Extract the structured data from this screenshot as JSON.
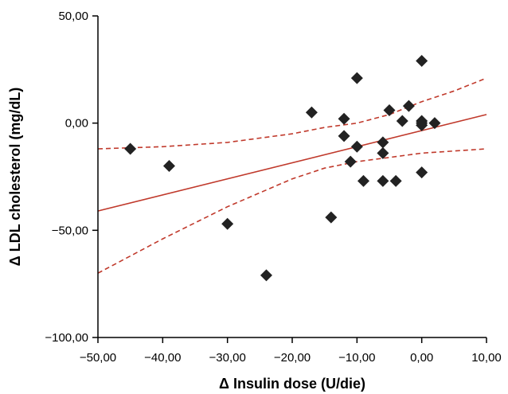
{
  "chart_data": {
    "type": "scatter",
    "xlabel": "Δ Insulin dose (U/die)",
    "ylabel": "Δ LDL cholesterol (mg/dL)",
    "xlim": [
      -50,
      10
    ],
    "ylim": [
      -100,
      50
    ],
    "x_ticks": [
      -50,
      -40,
      -30,
      -20,
      -10,
      0,
      10
    ],
    "y_ticks": [
      -100,
      -50,
      0,
      50
    ],
    "x_tick_labels": [
      "−50,00",
      "−40,00",
      "−30,00",
      "−20,00",
      "−10,00",
      "0,00",
      "10,00"
    ],
    "y_tick_labels": [
      "−100,00",
      "−50,00",
      "0,00",
      "50,00"
    ],
    "grid": false,
    "points": [
      {
        "x": -45,
        "y": -12
      },
      {
        "x": -39,
        "y": -20
      },
      {
        "x": -30,
        "y": -47
      },
      {
        "x": -24,
        "y": -71
      },
      {
        "x": -17,
        "y": 5
      },
      {
        "x": -14,
        "y": -44
      },
      {
        "x": -12,
        "y": 2
      },
      {
        "x": -12,
        "y": -6
      },
      {
        "x": -11,
        "y": -18
      },
      {
        "x": -10,
        "y": 21
      },
      {
        "x": -10,
        "y": -11
      },
      {
        "x": -9,
        "y": -27
      },
      {
        "x": -6,
        "y": -9
      },
      {
        "x": -6,
        "y": -14
      },
      {
        "x": -6,
        "y": -27
      },
      {
        "x": -5,
        "y": 6
      },
      {
        "x": -4,
        "y": -27
      },
      {
        "x": -3,
        "y": 1
      },
      {
        "x": -2,
        "y": 8
      },
      {
        "x": 0,
        "y": 29
      },
      {
        "x": 0,
        "y": 1
      },
      {
        "x": 0,
        "y": 0
      },
      {
        "x": 0,
        "y": -1
      },
      {
        "x": 0,
        "y": -23
      },
      {
        "x": 2,
        "y": 0
      }
    ],
    "regression_line": [
      {
        "x": -50,
        "y": -41
      },
      {
        "x": 10,
        "y": 4
      }
    ],
    "confidence_band": {
      "upper": [
        {
          "x": -50,
          "y": -12
        },
        {
          "x": -40,
          "y": -11
        },
        {
          "x": -30,
          "y": -9
        },
        {
          "x": -20,
          "y": -5
        },
        {
          "x": -15,
          "y": -2
        },
        {
          "x": -10,
          "y": 0
        },
        {
          "x": -5,
          "y": 4
        },
        {
          "x": 0,
          "y": 10
        },
        {
          "x": 5,
          "y": 15
        },
        {
          "x": 10,
          "y": 21
        }
      ],
      "lower": [
        {
          "x": -50,
          "y": -70
        },
        {
          "x": -40,
          "y": -54
        },
        {
          "x": -30,
          "y": -39
        },
        {
          "x": -20,
          "y": -26
        },
        {
          "x": -15,
          "y": -21
        },
        {
          "x": -10,
          "y": -18
        },
        {
          "x": -5,
          "y": -16
        },
        {
          "x": 0,
          "y": -14
        },
        {
          "x": 5,
          "y": -13
        },
        {
          "x": 10,
          "y": -12
        }
      ]
    },
    "colors": {
      "marker": "#222222",
      "regression": "#c0392b",
      "confidence": "#c0392b",
      "axis": "#000000"
    }
  }
}
